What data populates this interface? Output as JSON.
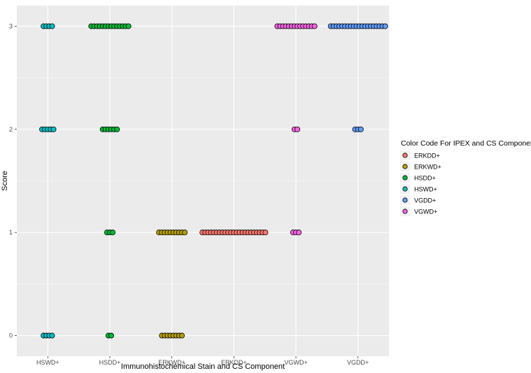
{
  "chart_data": {
    "type": "scatter",
    "xlabel": "Immunohistochemical Stain and CS Component",
    "ylabel": "Score",
    "categories": [
      "HSWD+",
      "HSDD+",
      "ERKWD+",
      "ERKDD+",
      "VGWD+",
      "VGDD+"
    ],
    "y_ticks": [
      "0",
      "1",
      "2",
      "3"
    ],
    "ylim": [
      -0.2,
      3.2
    ],
    "grid": true,
    "legend": {
      "title": "Color Code For IPEX and CS Component",
      "position": "right",
      "entries": [
        {
          "label": "ERKDD+",
          "color": "#F8766D"
        },
        {
          "label": "ERKWD+",
          "color": "#B79F00"
        },
        {
          "label": "HSDD+",
          "color": "#00BA38"
        },
        {
          "label": "HSWD+",
          "color": "#00BFC4"
        },
        {
          "label": "VGDD+",
          "color": "#619CFF"
        },
        {
          "label": "VGWD+",
          "color": "#F564E3"
        }
      ]
    },
    "groups": [
      {
        "category": "HSWD+",
        "color": "#00BFC4",
        "counts": [
          {
            "score": 0,
            "n": 4
          },
          {
            "score": 2,
            "n": 5
          },
          {
            "score": 3,
            "n": 4
          }
        ]
      },
      {
        "category": "HSDD+",
        "color": "#00BA38",
        "counts": [
          {
            "score": 0,
            "n": 2
          },
          {
            "score": 1,
            "n": 3
          },
          {
            "score": 2,
            "n": 6
          },
          {
            "score": 3,
            "n": 14
          }
        ]
      },
      {
        "category": "ERKWD+",
        "color": "#B79F00",
        "counts": [
          {
            "score": 0,
            "n": 8
          },
          {
            "score": 1,
            "n": 10
          }
        ]
      },
      {
        "category": "ERKDD+",
        "color": "#F8766D",
        "counts": [
          {
            "score": 1,
            "n": 23
          }
        ]
      },
      {
        "category": "VGWD+",
        "color": "#F564E3",
        "counts": [
          {
            "score": 1,
            "n": 3
          },
          {
            "score": 2,
            "n": 2
          },
          {
            "score": 3,
            "n": 14
          }
        ]
      },
      {
        "category": "VGDD+",
        "color": "#619CFF",
        "counts": [
          {
            "score": 2,
            "n": 3
          },
          {
            "score": 3,
            "n": 20
          }
        ]
      }
    ]
  }
}
